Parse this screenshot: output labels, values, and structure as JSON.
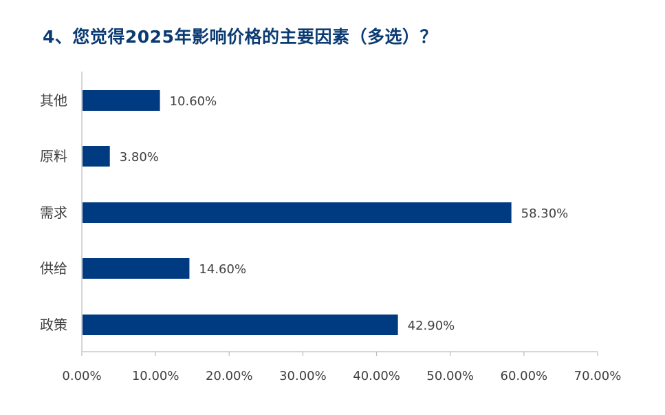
{
  "title": "4、您觉得2025年影响价格的主要因素（多选）？",
  "colors": {
    "bar": "#003a80",
    "title": "#0b3b73",
    "text": "#404040",
    "axis": "#bfbfbf"
  },
  "chart_data": {
    "type": "bar",
    "orientation": "horizontal",
    "title": "4、您觉得2025年影响价格的主要因素（多选）？",
    "categories": [
      "其他",
      "原料",
      "需求",
      "供给",
      "政策"
    ],
    "values": [
      10.6,
      3.8,
      58.3,
      14.6,
      42.9
    ],
    "value_labels": [
      "10.60%",
      "3.80%",
      "58.30%",
      "14.60%",
      "42.90%"
    ],
    "xlim": [
      0,
      70
    ],
    "x_ticks": [
      0,
      10,
      20,
      30,
      40,
      50,
      60,
      70
    ],
    "x_tick_labels": [
      "0.00%",
      "10.00%",
      "20.00%",
      "30.00%",
      "40.00%",
      "50.00%",
      "60.00%",
      "70.00%"
    ],
    "xlabel": "",
    "ylabel": "",
    "grid": false,
    "legend": "none"
  }
}
